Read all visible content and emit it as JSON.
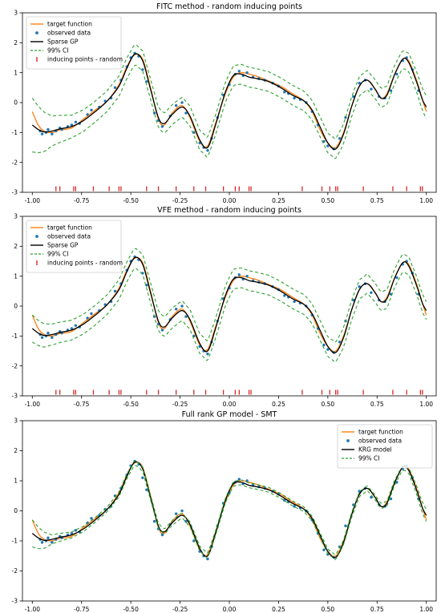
{
  "colors": {
    "target": "#ff7f0e",
    "observed": "#1f77b4",
    "model": "#000000",
    "ci": "#2ca02c",
    "inducing": "#d62728"
  },
  "chart_data": [
    {
      "type": "line",
      "title": "FITC method - random inducing points",
      "xlabel": "",
      "ylabel": "",
      "xlim": [
        -1.05,
        1.05
      ],
      "ylim": [
        -3,
        3
      ],
      "xticks": [
        -1.0,
        -0.75,
        -0.5,
        -0.25,
        0.0,
        0.25,
        0.5,
        0.75,
        1.0
      ],
      "xtick_labels": [
        "-1.00",
        "-0.75",
        "-0.50",
        "-0.25",
        "0.00",
        "0.25",
        "0.50",
        "0.75",
        "1.00"
      ],
      "yticks": [
        -3,
        -2,
        -1,
        0,
        1,
        2,
        3
      ],
      "ytick_labels": [
        "-3",
        "-2",
        "-1",
        "0",
        "1",
        "2",
        "3"
      ],
      "grid": false,
      "legend_position": "top-left",
      "legend": [
        "target function",
        "observed data",
        "Sparse GP",
        "99% CI",
        "inducing points - random"
      ],
      "series": [
        {
          "name": "target function",
          "kind": "line",
          "color_key": "target"
        },
        {
          "name": "observed data",
          "kind": "scatter",
          "color_key": "observed"
        },
        {
          "name": "Sparse GP",
          "kind": "line",
          "color_key": "model"
        },
        {
          "name": "99% CI",
          "kind": "dashed",
          "color_key": "ci"
        },
        {
          "name": "inducing points - random",
          "kind": "ticks",
          "color_key": "inducing"
        }
      ],
      "ci_knots": {
        "x": [
          -1.0,
          -0.9,
          -0.8,
          -0.7,
          -0.2,
          0.6,
          0.9,
          1.0
        ],
        "halfwidth": [
          0.9,
          0.5,
          0.38,
          0.35,
          0.33,
          0.33,
          0.3,
          0.38
        ]
      },
      "inducing_points": {
        "y": -2.88,
        "x": [
          -0.88,
          -0.86,
          -0.79,
          -0.78,
          -0.69,
          -0.61,
          -0.56,
          -0.55,
          -0.42,
          -0.36,
          -0.27,
          -0.18,
          -0.12,
          -0.03,
          0.03,
          0.05,
          0.1,
          0.11,
          0.37,
          0.47,
          0.51,
          0.54,
          0.55,
          0.68,
          0.83,
          0.9,
          0.97,
          0.98
        ]
      }
    },
    {
      "type": "line",
      "title": "VFE method - random inducing points",
      "xlabel": "",
      "ylabel": "",
      "xlim": [
        -1.05,
        1.05
      ],
      "ylim": [
        -3,
        3
      ],
      "xticks": [
        -1.0,
        -0.75,
        -0.5,
        -0.25,
        0.0,
        0.25,
        0.5,
        0.75,
        1.0
      ],
      "xtick_labels": [
        "-1.00",
        "-0.75",
        "-0.50",
        "-0.25",
        "0.00",
        "0.25",
        "0.50",
        "0.75",
        "1.00"
      ],
      "yticks": [
        -3,
        -2,
        -1,
        0,
        1,
        2,
        3
      ],
      "ytick_labels": [
        "-3",
        "-2",
        "-1",
        "0",
        "1",
        "2",
        "3"
      ],
      "grid": false,
      "legend_position": "top-left",
      "legend": [
        "target function",
        "observed data",
        "Sparse GP",
        "99% CI",
        "inducing points - random"
      ],
      "series": [
        {
          "name": "target function",
          "kind": "line",
          "color_key": "target"
        },
        {
          "name": "observed data",
          "kind": "scatter",
          "color_key": "observed"
        },
        {
          "name": "Sparse GP",
          "kind": "line",
          "color_key": "model"
        },
        {
          "name": "99% CI",
          "kind": "dashed",
          "color_key": "ci"
        },
        {
          "name": "inducing points - random",
          "kind": "ticks",
          "color_key": "inducing"
        }
      ],
      "ci_knots": {
        "x": [
          -1.0,
          -0.9,
          -0.8,
          -0.7,
          -0.2,
          0.6,
          0.9,
          1.0
        ],
        "halfwidth": [
          0.45,
          0.35,
          0.33,
          0.33,
          0.33,
          0.33,
          0.3,
          0.3
        ]
      },
      "inducing_points": {
        "y": -2.88,
        "x": [
          -0.88,
          -0.86,
          -0.79,
          -0.78,
          -0.69,
          -0.61,
          -0.56,
          -0.55,
          -0.42,
          -0.36,
          -0.27,
          -0.18,
          -0.12,
          -0.03,
          0.03,
          0.05,
          0.1,
          0.11,
          0.37,
          0.47,
          0.51,
          0.54,
          0.55,
          0.68,
          0.83,
          0.9,
          0.97,
          0.98
        ]
      }
    },
    {
      "type": "line",
      "title": "Full rank GP model - SMT",
      "xlabel": "",
      "ylabel": "",
      "xlim": [
        -1.05,
        1.05
      ],
      "ylim": [
        -3,
        3
      ],
      "xticks": [
        -1.0,
        -0.75,
        -0.5,
        -0.25,
        0.0,
        0.25,
        0.5,
        0.75,
        1.0
      ],
      "xtick_labels": [
        "-1.00",
        "-0.75",
        "-0.50",
        "-0.25",
        "0.00",
        "0.25",
        "0.50",
        "0.75",
        "1.00"
      ],
      "yticks": [
        -3,
        -2,
        -1,
        0,
        1,
        2,
        3
      ],
      "ytick_labels": [
        "-3",
        "-2",
        "-1",
        "0",
        "1",
        "2",
        "3"
      ],
      "grid": false,
      "legend_position": "top-right",
      "legend": [
        "target function",
        "observed data",
        "KRG model",
        "99% CI"
      ],
      "series": [
        {
          "name": "target function",
          "kind": "line",
          "color_key": "target"
        },
        {
          "name": "observed data",
          "kind": "scatter",
          "color_key": "observed"
        },
        {
          "name": "KRG model",
          "kind": "line",
          "color_key": "model"
        },
        {
          "name": "99% CI",
          "kind": "dashed",
          "color_key": "ci"
        }
      ],
      "ci_knots": {
        "x": [
          -1.0,
          -0.9,
          -0.8,
          -0.7,
          0.0,
          0.9,
          1.0
        ],
        "halfwidth": [
          0.45,
          0.15,
          0.1,
          0.08,
          0.08,
          0.08,
          0.2
        ]
      }
    }
  ],
  "shared_curves": {
    "target_function": {
      "x": [
        -1.0,
        -0.97,
        -0.94,
        -0.9,
        -0.86,
        -0.8,
        -0.74,
        -0.68,
        -0.62,
        -0.56,
        -0.52,
        -0.48,
        -0.44,
        -0.4,
        -0.36,
        -0.33,
        -0.29,
        -0.24,
        -0.2,
        -0.15,
        -0.11,
        -0.07,
        -0.02,
        0.02,
        0.06,
        0.1,
        0.14,
        0.2,
        0.26,
        0.32,
        0.38,
        0.42,
        0.46,
        0.5,
        0.54,
        0.58,
        0.62,
        0.66,
        0.7,
        0.74,
        0.77,
        0.8,
        0.84,
        0.88,
        0.91,
        0.95,
        0.98,
        1.0
      ],
      "y": [
        -0.3,
        -0.75,
        -0.95,
        -1.0,
        -0.92,
        -0.85,
        -0.55,
        -0.25,
        0.05,
        0.6,
        1.2,
        1.6,
        1.45,
        0.5,
        -0.55,
        -0.75,
        -0.35,
        -0.1,
        -0.5,
        -1.3,
        -1.45,
        -0.7,
        0.3,
        0.85,
        1.0,
        0.95,
        0.88,
        0.72,
        0.55,
        0.3,
        0.05,
        -0.3,
        -0.9,
        -1.35,
        -1.5,
        -1.0,
        -0.15,
        0.55,
        0.75,
        0.45,
        0.15,
        0.3,
        0.95,
        1.45,
        1.4,
        0.75,
        0.1,
        -0.3
      ]
    },
    "model_curve": {
      "x": [
        -1.0,
        -0.97,
        -0.94,
        -0.9,
        -0.86,
        -0.8,
        -0.74,
        -0.68,
        -0.62,
        -0.56,
        -0.52,
        -0.48,
        -0.44,
        -0.4,
        -0.36,
        -0.33,
        -0.29,
        -0.24,
        -0.2,
        -0.15,
        -0.11,
        -0.07,
        -0.02,
        0.02,
        0.06,
        0.1,
        0.14,
        0.2,
        0.26,
        0.32,
        0.38,
        0.42,
        0.46,
        0.5,
        0.54,
        0.58,
        0.62,
        0.66,
        0.7,
        0.74,
        0.77,
        0.8,
        0.84,
        0.88,
        0.91,
        0.95,
        0.98,
        1.0
      ],
      "y": [
        -0.75,
        -0.9,
        -0.98,
        -0.95,
        -0.88,
        -0.8,
        -0.6,
        -0.3,
        0.05,
        0.55,
        1.15,
        1.62,
        1.4,
        0.45,
        -0.5,
        -0.7,
        -0.4,
        -0.15,
        -0.45,
        -1.25,
        -1.5,
        -0.75,
        0.35,
        0.9,
        0.95,
        0.85,
        0.8,
        0.7,
        0.5,
        0.25,
        0.05,
        -0.25,
        -0.8,
        -1.35,
        -1.55,
        -1.05,
        -0.15,
        0.55,
        0.75,
        0.45,
        0.15,
        0.25,
        0.95,
        1.45,
        1.35,
        0.7,
        0.1,
        -0.15
      ]
    },
    "observed_data": {
      "x": [
        -0.96,
        -0.95,
        -0.93,
        -0.92,
        -0.9,
        -0.88,
        -0.86,
        -0.85,
        -0.82,
        -0.8,
        -0.78,
        -0.76,
        -0.72,
        -0.7,
        -0.66,
        -0.63,
        -0.6,
        -0.58,
        -0.55,
        -0.52,
        -0.5,
        -0.48,
        -0.46,
        -0.44,
        -0.42,
        -0.38,
        -0.36,
        -0.34,
        -0.3,
        -0.27,
        -0.24,
        -0.22,
        -0.18,
        -0.15,
        -0.13,
        -0.11,
        -0.09,
        -0.06,
        -0.03,
        0.0,
        0.03,
        0.05,
        0.07,
        0.09,
        0.12,
        0.15,
        0.18,
        0.22,
        0.25,
        0.28,
        0.3,
        0.33,
        0.36,
        0.39,
        0.42,
        0.45,
        0.48,
        0.5,
        0.53,
        0.56,
        0.59,
        0.63,
        0.66,
        0.69,
        0.72,
        0.76,
        0.79,
        0.82,
        0.85,
        0.88,
        0.9,
        0.93,
        0.96
      ],
      "y": [
        -0.95,
        -1.05,
        -1.0,
        -0.9,
        -1.05,
        -0.95,
        -0.85,
        -0.9,
        -0.8,
        -0.75,
        -0.65,
        -0.7,
        -0.4,
        -0.25,
        -0.15,
        0.05,
        0.15,
        0.5,
        0.75,
        1.2,
        1.5,
        1.65,
        1.55,
        1.1,
        0.7,
        -0.35,
        -0.6,
        -0.8,
        -0.45,
        -0.1,
        0.0,
        -0.35,
        -1.0,
        -1.35,
        -1.5,
        -1.6,
        -1.2,
        -0.5,
        0.25,
        0.6,
        0.95,
        1.05,
        0.9,
        1.0,
        0.85,
        0.8,
        0.75,
        0.65,
        0.55,
        0.35,
        0.3,
        0.15,
        0.1,
        0.0,
        -0.3,
        -0.75,
        -1.3,
        -1.45,
        -1.55,
        -1.2,
        -0.5,
        0.2,
        0.65,
        0.75,
        0.45,
        0.2,
        0.15,
        0.4,
        0.95,
        1.4,
        1.5,
        1.1,
        0.4
      ]
    }
  }
}
